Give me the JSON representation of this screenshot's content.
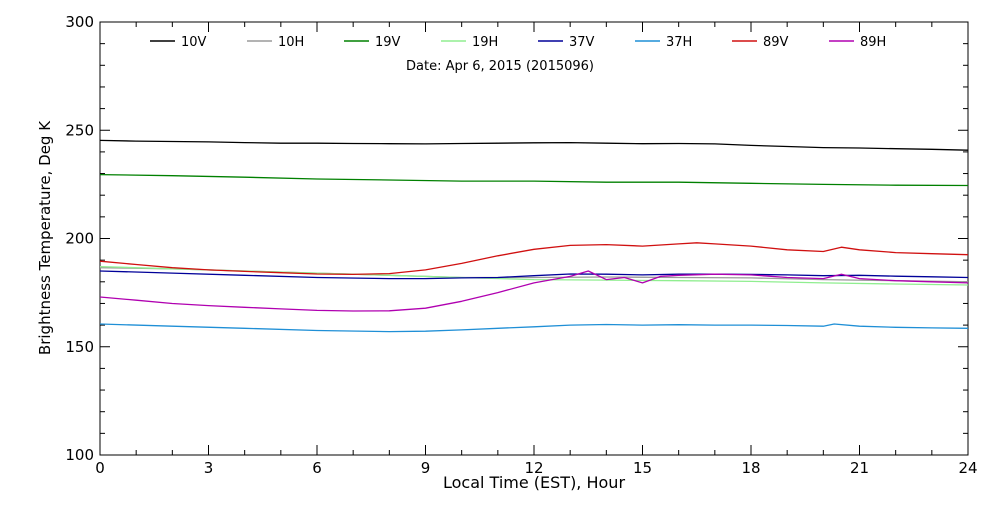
{
  "chart_data": {
    "type": "line",
    "title": "",
    "subtitle": "Date: Apr  6, 2015 (2015096)",
    "xlabel": "Local Time (EST), Hour",
    "ylabel": "Brightness Temperature, Deg K",
    "xlim": [
      0,
      24
    ],
    "ylim": [
      100,
      300
    ],
    "xticks": [
      0,
      3,
      6,
      9,
      12,
      15,
      18,
      21,
      24
    ],
    "yticks": [
      100,
      150,
      200,
      250,
      300
    ],
    "grid": false,
    "legend_position": "top",
    "series": [
      {
        "name": "10V",
        "color": "#000000",
        "x": [
          0,
          1,
          2,
          3,
          4,
          5,
          6,
          7,
          8,
          9,
          10,
          11,
          12,
          13,
          14,
          15,
          16,
          17,
          18,
          19,
          20,
          21,
          22,
          23,
          24
        ],
        "y": [
          245.3,
          245.0,
          244.8,
          244.6,
          244.3,
          244.0,
          244.0,
          243.9,
          243.8,
          243.7,
          243.9,
          244.0,
          244.2,
          244.3,
          244.0,
          243.8,
          243.9,
          243.7,
          243.0,
          242.5,
          242.0,
          241.8,
          241.5,
          241.2,
          240.8
        ]
      },
      {
        "name": "10H",
        "color": "#9a9a9a",
        "x": [
          0,
          2,
          4,
          6,
          8,
          10,
          12,
          14,
          16,
          18,
          20,
          22,
          24
        ],
        "y": [
          186.5,
          186.0,
          185.0,
          184.0,
          183.0,
          182.0,
          182.0,
          182.2,
          182.0,
          181.8,
          181.0,
          180.5,
          180.0
        ]
      },
      {
        "name": "19V",
        "color": "#008000",
        "x": [
          0,
          2,
          4,
          6,
          8,
          10,
          12,
          14,
          16,
          18,
          20,
          22,
          24
        ],
        "y": [
          229.5,
          229.0,
          228.3,
          227.5,
          227.0,
          226.5,
          226.5,
          226.0,
          226.0,
          225.5,
          225.0,
          224.6,
          224.5
        ]
      },
      {
        "name": "19H",
        "color": "#90ee90",
        "x": [
          0,
          2,
          4,
          6,
          8,
          10,
          12,
          14,
          16,
          18,
          20,
          22,
          24
        ],
        "y": [
          187.0,
          186.0,
          185.0,
          184.0,
          183.0,
          182.0,
          181.0,
          180.8,
          180.5,
          180.2,
          179.5,
          179.0,
          178.5
        ]
      },
      {
        "name": "37V",
        "color": "#000099",
        "x": [
          0,
          2,
          4,
          6,
          8,
          9,
          10,
          11,
          12,
          13,
          14,
          15,
          16,
          17,
          18,
          19,
          20,
          21,
          22,
          23,
          24
        ],
        "y": [
          185.0,
          184.0,
          183.0,
          182.0,
          181.5,
          181.5,
          181.8,
          182.0,
          182.8,
          183.6,
          183.5,
          183.2,
          183.5,
          183.5,
          183.4,
          183.2,
          182.8,
          183.0,
          182.6,
          182.3,
          182.0
        ]
      },
      {
        "name": "37H",
        "color": "#1f8fd6",
        "x": [
          0,
          2,
          4,
          6,
          8,
          9,
          10,
          11,
          12,
          13,
          14,
          15,
          16,
          17,
          18,
          19,
          20,
          20.3,
          21,
          22,
          23,
          24
        ],
        "y": [
          160.5,
          159.5,
          158.5,
          157.5,
          157.0,
          157.2,
          157.8,
          158.5,
          159.2,
          160.0,
          160.3,
          160.0,
          160.2,
          160.0,
          160.0,
          159.8,
          159.5,
          160.5,
          159.5,
          159.0,
          158.7,
          158.5
        ]
      },
      {
        "name": "89V",
        "color": "#d01010",
        "x": [
          0,
          1,
          2,
          3,
          4,
          5,
          6,
          7,
          8,
          9,
          10,
          11,
          12,
          13,
          14,
          15,
          16,
          16.5,
          17,
          18,
          19,
          20,
          20.5,
          21,
          22,
          23,
          24
        ],
        "y": [
          189.5,
          188.0,
          186.5,
          185.5,
          184.8,
          184.2,
          183.6,
          183.4,
          183.8,
          185.5,
          188.5,
          192.0,
          195.0,
          196.8,
          197.2,
          196.5,
          197.5,
          198.0,
          197.5,
          196.5,
          194.8,
          194.0,
          196.0,
          194.8,
          193.5,
          193.0,
          192.5
        ]
      },
      {
        "name": "89H",
        "color": "#b000b0",
        "x": [
          0,
          1,
          2,
          3,
          4,
          5,
          6,
          7,
          8,
          9,
          10,
          11,
          12,
          13,
          13.5,
          14,
          14.5,
          15,
          15.5,
          16,
          17,
          18,
          19,
          20,
          20.5,
          21,
          22,
          23,
          24
        ],
        "y": [
          173.0,
          171.5,
          170.0,
          169.0,
          168.2,
          167.5,
          166.8,
          166.5,
          166.6,
          167.8,
          171.0,
          175.0,
          179.5,
          182.5,
          185.0,
          181.0,
          182.0,
          179.5,
          182.5,
          183.0,
          183.5,
          183.2,
          182.0,
          181.5,
          183.5,
          181.5,
          180.5,
          180.0,
          179.5
        ]
      }
    ]
  }
}
